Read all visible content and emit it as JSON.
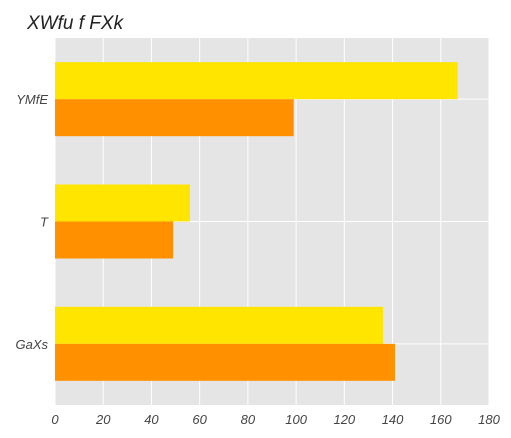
{
  "chart_data": {
    "type": "bar",
    "orientation": "horizontal",
    "title": "XWfu f FXk",
    "xlabel": "",
    "ylabel": "",
    "categories": [
      "YMfE",
      "T",
      "GaXs"
    ],
    "series": [
      {
        "values": [
          167,
          56,
          136
        ],
        "color": "#FFE500"
      },
      {
        "values": [
          99,
          49,
          141
        ],
        "color": "#FF9100"
      }
    ],
    "xlim": [
      0,
      180
    ],
    "xticks": [
      0,
      20,
      40,
      60,
      80,
      100,
      120,
      140,
      160,
      180
    ],
    "grid": true,
    "legend": "none",
    "background_color": "#E5E5E5",
    "grid_color": "#FFFFFF"
  }
}
